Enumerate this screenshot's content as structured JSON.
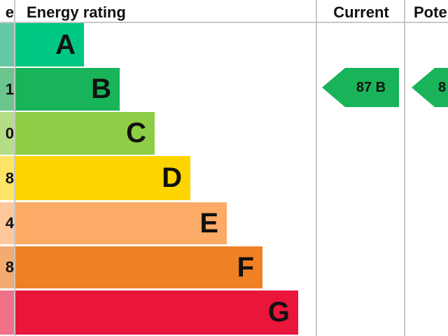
{
  "header": {
    "score": "e",
    "rating": "Energy rating",
    "current": "Current",
    "potential": "Pote"
  },
  "chart_data": {
    "type": "bar",
    "categories": [
      "A",
      "B",
      "C",
      "D",
      "E",
      "F",
      "G"
    ],
    "score_fragments": [
      "",
      "1",
      "0",
      "8",
      "4",
      "8",
      ""
    ],
    "colors": [
      "#00c781",
      "#19b459",
      "#8dce46",
      "#ffd500",
      "#fcaa65",
      "#ef8023",
      "#e9153b"
    ],
    "score_colors": [
      "#66c8a4",
      "#6cc58e",
      "#b5dc87",
      "#ffe466",
      "#fdc89c",
      "#f3ab6f",
      "#f0728a"
    ],
    "current": {
      "value": 87,
      "band": "B",
      "label": "87 B",
      "color": "#19b459"
    },
    "potential": {
      "label": "8",
      "band": "B",
      "color": "#19b459"
    }
  }
}
